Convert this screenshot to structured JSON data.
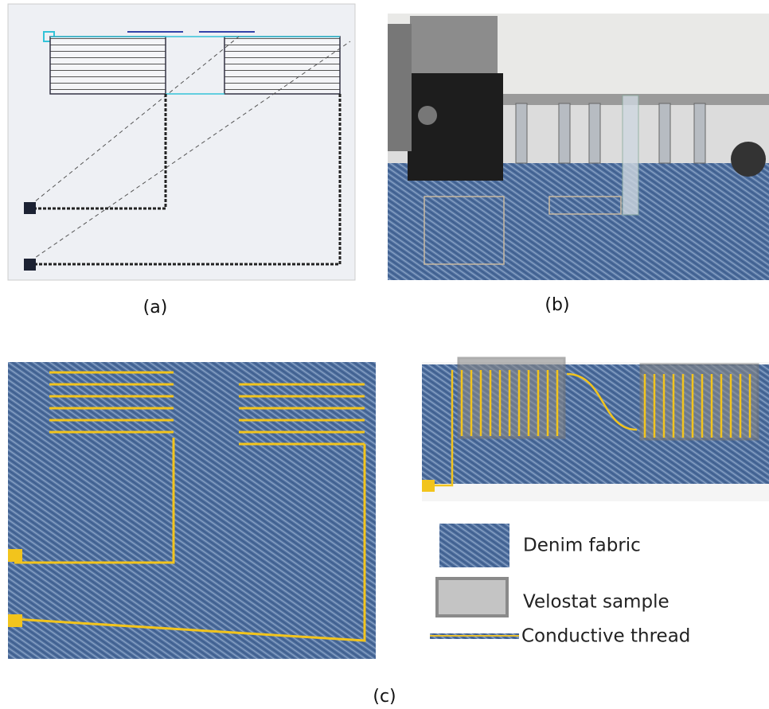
{
  "panels": {
    "a": {
      "label": "(a)"
    },
    "b": {
      "label": "(b)"
    },
    "c": {
      "label": "(c)"
    }
  },
  "legend": {
    "items": [
      {
        "label": "Denim fabric"
      },
      {
        "label": "Velostat sample"
      },
      {
        "label": "Conductive thread"
      }
    ]
  }
}
